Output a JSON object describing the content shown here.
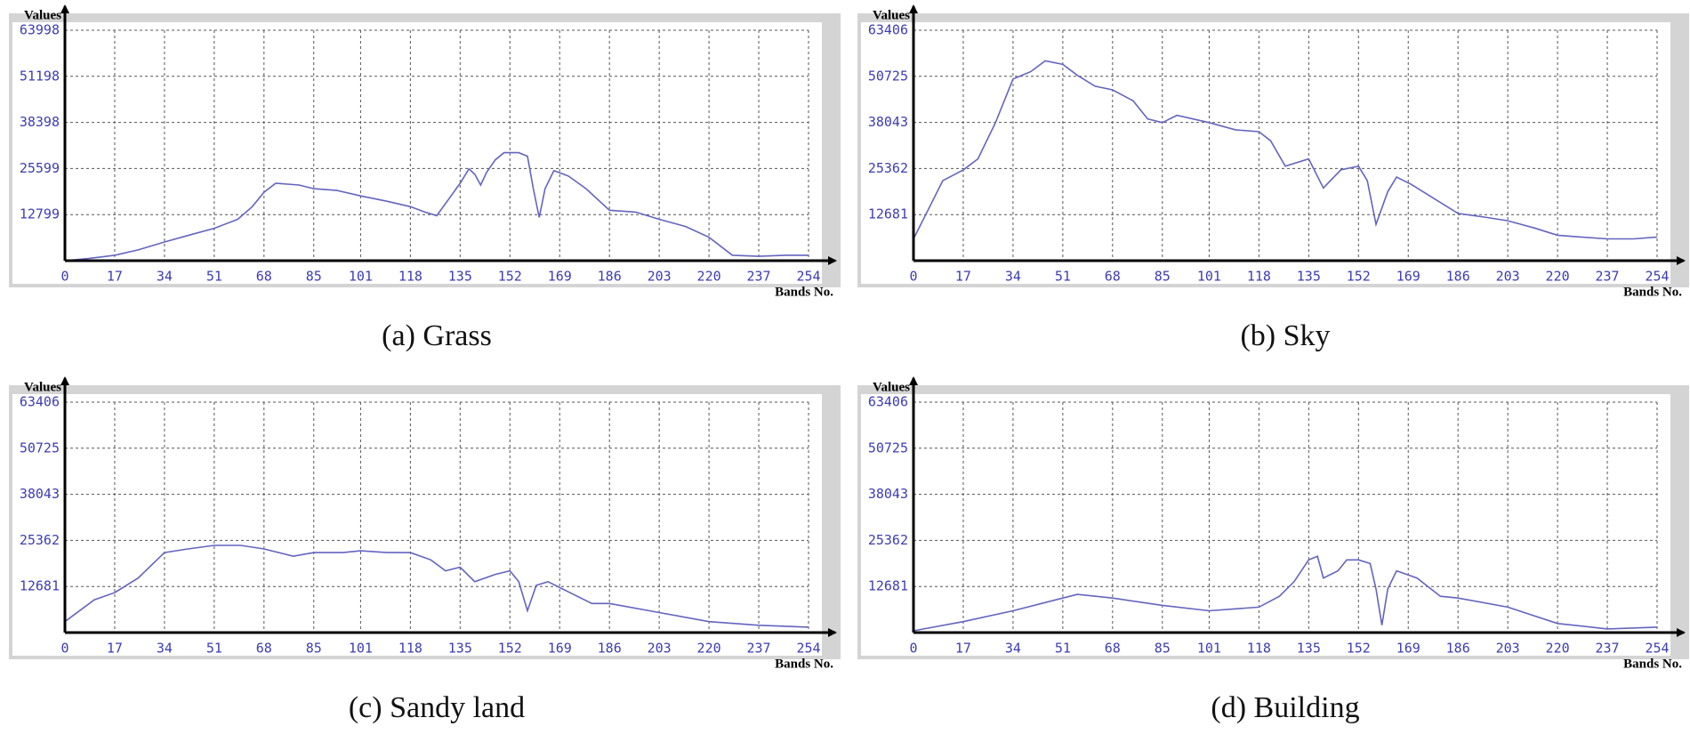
{
  "chart_data": [
    {
      "type": "line",
      "title": "(a) Grass",
      "ylabel": "Values",
      "xlabel": "Bands No.",
      "color": "#6464c0",
      "grid": true,
      "xlim": [
        0,
        254
      ],
      "ylim": [
        0,
        63998
      ],
      "xticks": [
        0,
        17,
        34,
        51,
        68,
        85,
        101,
        118,
        135,
        152,
        169,
        186,
        203,
        220,
        237,
        254
      ],
      "yticks": [
        12799,
        25599,
        38398,
        51198,
        63998
      ],
      "x": [
        0,
        8,
        17,
        25,
        34,
        42,
        51,
        59,
        64,
        68,
        72,
        80,
        85,
        93,
        101,
        110,
        118,
        123,
        127,
        131,
        135,
        138,
        140,
        142,
        144,
        147,
        150,
        155,
        158,
        160,
        162,
        164,
        167,
        172,
        178,
        186,
        195,
        203,
        212,
        220,
        228,
        237,
        246,
        254
      ],
      "values": [
        0,
        600,
        1500,
        3000,
        5200,
        7000,
        9000,
        11500,
        15000,
        19000,
        21500,
        21000,
        20000,
        19500,
        18000,
        16500,
        15000,
        13500,
        12500,
        17000,
        21500,
        25500,
        24000,
        21000,
        24500,
        28000,
        30000,
        30000,
        29000,
        20000,
        12000,
        20000,
        25000,
        23500,
        20000,
        14000,
        13500,
        11500,
        9500,
        6500,
        1500,
        1200,
        1500,
        1500
      ]
    },
    {
      "type": "line",
      "title": "(b) Sky",
      "ylabel": "Values",
      "xlabel": "Bands No.",
      "color": "#6464c0",
      "grid": true,
      "xlim": [
        0,
        254
      ],
      "ylim": [
        0,
        63406
      ],
      "xticks": [
        0,
        17,
        34,
        51,
        68,
        85,
        101,
        118,
        135,
        152,
        169,
        186,
        203,
        220,
        237,
        254
      ],
      "yticks": [
        12681,
        25362,
        38043,
        50725,
        63406
      ],
      "x": [
        0,
        5,
        10,
        17,
        22,
        28,
        34,
        40,
        45,
        51,
        56,
        62,
        68,
        75,
        80,
        85,
        90,
        101,
        110,
        118,
        122,
        127,
        135,
        140,
        146,
        152,
        155,
        158,
        162,
        165,
        170,
        178,
        186,
        195,
        203,
        212,
        220,
        228,
        237,
        246,
        254
      ],
      "values": [
        6000,
        14000,
        22000,
        25000,
        28000,
        38000,
        50000,
        52000,
        55000,
        54000,
        51000,
        48000,
        47000,
        44000,
        39000,
        38000,
        40000,
        38000,
        36000,
        35500,
        33000,
        26000,
        28000,
        20000,
        25000,
        26000,
        22000,
        10000,
        19000,
        23000,
        21000,
        17000,
        13000,
        12000,
        11000,
        9000,
        7000,
        6500,
        6000,
        6000,
        6500
      ]
    },
    {
      "type": "line",
      "title": "(c) Sandy land",
      "ylabel": "Values",
      "xlabel": "Bands No.",
      "color": "#6464c0",
      "grid": true,
      "xlim": [
        0,
        254
      ],
      "ylim": [
        0,
        63406
      ],
      "xticks": [
        0,
        17,
        34,
        51,
        68,
        85,
        101,
        118,
        135,
        152,
        169,
        186,
        203,
        220,
        237,
        254
      ],
      "yticks": [
        12681,
        25362,
        38043,
        50725,
        63406
      ],
      "x": [
        0,
        10,
        17,
        25,
        34,
        42,
        51,
        60,
        68,
        78,
        85,
        95,
        101,
        110,
        118,
        125,
        130,
        135,
        140,
        147,
        152,
        155,
        158,
        161,
        165,
        170,
        180,
        186,
        203,
        220,
        237,
        254
      ],
      "values": [
        3000,
        9000,
        11000,
        15000,
        22000,
        23000,
        24000,
        24000,
        23000,
        21000,
        22000,
        22000,
        22500,
        22000,
        22000,
        20000,
        17000,
        18000,
        14000,
        16000,
        17000,
        14000,
        6000,
        13000,
        14000,
        12000,
        8000,
        8000,
        5500,
        3000,
        2000,
        1500
      ]
    },
    {
      "type": "line",
      "title": "(d) Building",
      "ylabel": "Values",
      "xlabel": "Bands No.",
      "color": "#6464c0",
      "grid": true,
      "xlim": [
        0,
        254
      ],
      "ylim": [
        0,
        63406
      ],
      "xticks": [
        0,
        17,
        34,
        51,
        68,
        85,
        101,
        118,
        135,
        152,
        169,
        186,
        203,
        220,
        237,
        254
      ],
      "yticks": [
        12681,
        25362,
        38043,
        50725,
        63406
      ],
      "x": [
        0,
        17,
        34,
        51,
        56,
        68,
        85,
        101,
        118,
        125,
        130,
        135,
        138,
        140,
        145,
        148,
        152,
        156,
        158,
        160,
        162,
        165,
        172,
        180,
        186,
        203,
        220,
        237,
        254
      ],
      "values": [
        500,
        3000,
        6000,
        9500,
        10500,
        9500,
        7500,
        6000,
        7000,
        10000,
        14000,
        20000,
        21000,
        15000,
        17000,
        20000,
        20000,
        19000,
        12000,
        2000,
        12000,
        17000,
        15000,
        10000,
        9500,
        7000,
        2500,
        1000,
        1500
      ]
    }
  ]
}
